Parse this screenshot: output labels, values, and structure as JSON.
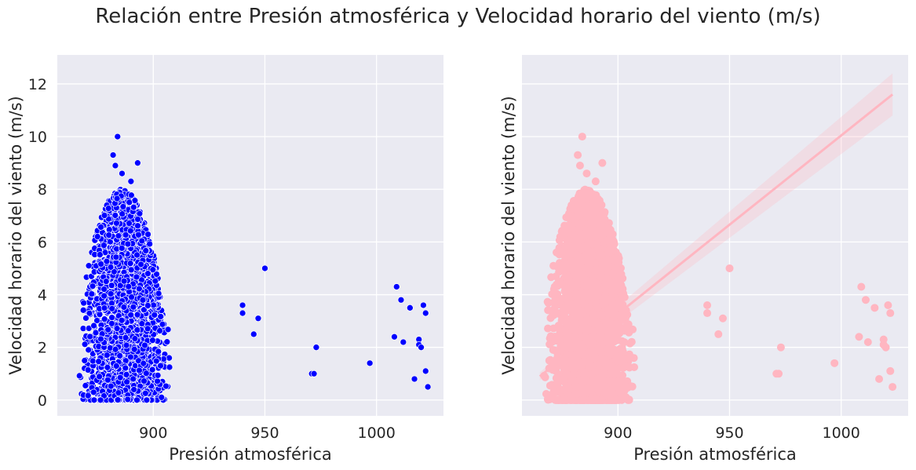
{
  "figure_title": "Relación entre Presión atmosférica y Velocidad horario del viento (m/s)",
  "colors": {
    "panel_bg": "#eaeaf2",
    "grid": "#ffffff",
    "left_points": "#0000ff",
    "right_points": "#ffb6c1",
    "regression": "#ffb6c1"
  },
  "chart_data": [
    {
      "type": "scatter",
      "xlabel": "Presión atmosférica",
      "ylabel": "Velocidad horario del viento (m/s)",
      "xlim": [
        857,
        1030
      ],
      "ylim": [
        -0.6,
        13.1
      ],
      "xticks": [
        "900",
        "950",
        "1000"
      ],
      "yticks": [
        "0",
        "2",
        "4",
        "6",
        "8",
        "10",
        "12"
      ],
      "grid": true,
      "color": "#0000ff",
      "dense_cloud": {
        "x_range": [
          865,
          910
        ],
        "y_range": [
          0,
          8
        ],
        "center_x": 886
      },
      "outliers": [
        {
          "x": 884,
          "y": 10.0
        },
        {
          "x": 882,
          "y": 9.3
        },
        {
          "x": 883,
          "y": 8.9
        },
        {
          "x": 886,
          "y": 8.6
        },
        {
          "x": 893,
          "y": 9.0
        },
        {
          "x": 890,
          "y": 8.3
        },
        {
          "x": 940,
          "y": 3.6
        },
        {
          "x": 940,
          "y": 3.3
        },
        {
          "x": 945,
          "y": 2.5
        },
        {
          "x": 947,
          "y": 3.1
        },
        {
          "x": 950,
          "y": 5.0
        },
        {
          "x": 971,
          "y": 1.0
        },
        {
          "x": 972,
          "y": 1.0
        },
        {
          "x": 973,
          "y": 2.0
        },
        {
          "x": 997,
          "y": 1.4
        },
        {
          "x": 1008,
          "y": 2.4
        },
        {
          "x": 1009,
          "y": 4.3
        },
        {
          "x": 1011,
          "y": 3.8
        },
        {
          "x": 1012,
          "y": 2.2
        },
        {
          "x": 1015,
          "y": 3.5
        },
        {
          "x": 1017,
          "y": 0.8
        },
        {
          "x": 1019,
          "y": 2.3
        },
        {
          "x": 1019,
          "y": 2.1
        },
        {
          "x": 1020,
          "y": 2.0
        },
        {
          "x": 1021,
          "y": 3.6
        },
        {
          "x": 1022,
          "y": 3.3
        },
        {
          "x": 1022,
          "y": 1.1
        },
        {
          "x": 1023,
          "y": 0.5
        }
      ]
    },
    {
      "type": "scatter",
      "xlabel": "Presión atmosférica",
      "ylabel": "Velocidad horario del viento (m/s)",
      "xlim": [
        857,
        1030
      ],
      "ylim": [
        -0.6,
        13.1
      ],
      "xticks": [
        "900",
        "950",
        "1000"
      ],
      "grid": true,
      "color": "#ffb6c1",
      "regression": {
        "x": [
          865,
          1023
        ],
        "y": [
          0.9,
          11.6
        ],
        "ci_at_end": 0.8
      },
      "dense_cloud": {
        "x_range": [
          865,
          910
        ],
        "y_range": [
          0,
          8
        ],
        "center_x": 886
      },
      "outliers": [
        {
          "x": 884,
          "y": 10.0
        },
        {
          "x": 882,
          "y": 9.3
        },
        {
          "x": 883,
          "y": 8.9
        },
        {
          "x": 886,
          "y": 8.6
        },
        {
          "x": 893,
          "y": 9.0
        },
        {
          "x": 890,
          "y": 8.3
        },
        {
          "x": 940,
          "y": 3.6
        },
        {
          "x": 940,
          "y": 3.3
        },
        {
          "x": 945,
          "y": 2.5
        },
        {
          "x": 947,
          "y": 3.1
        },
        {
          "x": 950,
          "y": 5.0
        },
        {
          "x": 971,
          "y": 1.0
        },
        {
          "x": 972,
          "y": 1.0
        },
        {
          "x": 973,
          "y": 2.0
        },
        {
          "x": 997,
          "y": 1.4
        },
        {
          "x": 1008,
          "y": 2.4
        },
        {
          "x": 1009,
          "y": 4.3
        },
        {
          "x": 1011,
          "y": 3.8
        },
        {
          "x": 1012,
          "y": 2.2
        },
        {
          "x": 1015,
          "y": 3.5
        },
        {
          "x": 1017,
          "y": 0.8
        },
        {
          "x": 1019,
          "y": 2.3
        },
        {
          "x": 1019,
          "y": 2.1
        },
        {
          "x": 1020,
          "y": 2.0
        },
        {
          "x": 1021,
          "y": 3.6
        },
        {
          "x": 1022,
          "y": 3.3
        },
        {
          "x": 1022,
          "y": 1.1
        },
        {
          "x": 1023,
          "y": 0.5
        }
      ]
    }
  ]
}
